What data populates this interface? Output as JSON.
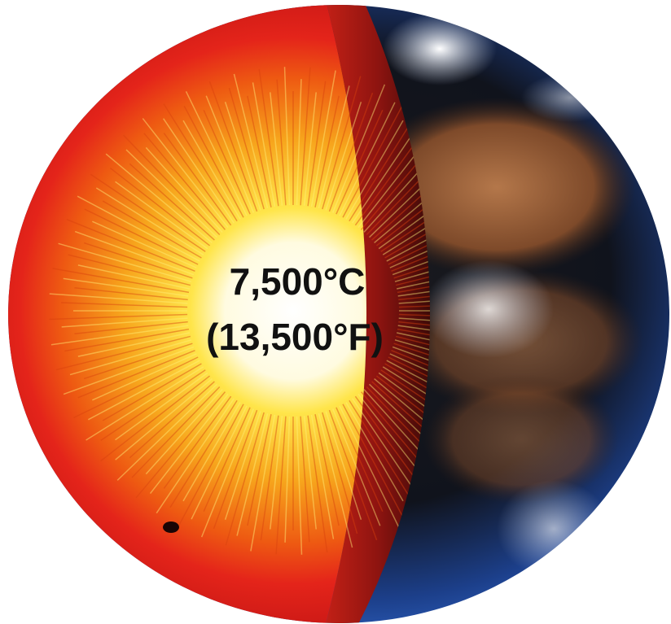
{
  "labels": {
    "celsius": "7,500°C",
    "fahrenheit": "(13,500°F)"
  }
}
